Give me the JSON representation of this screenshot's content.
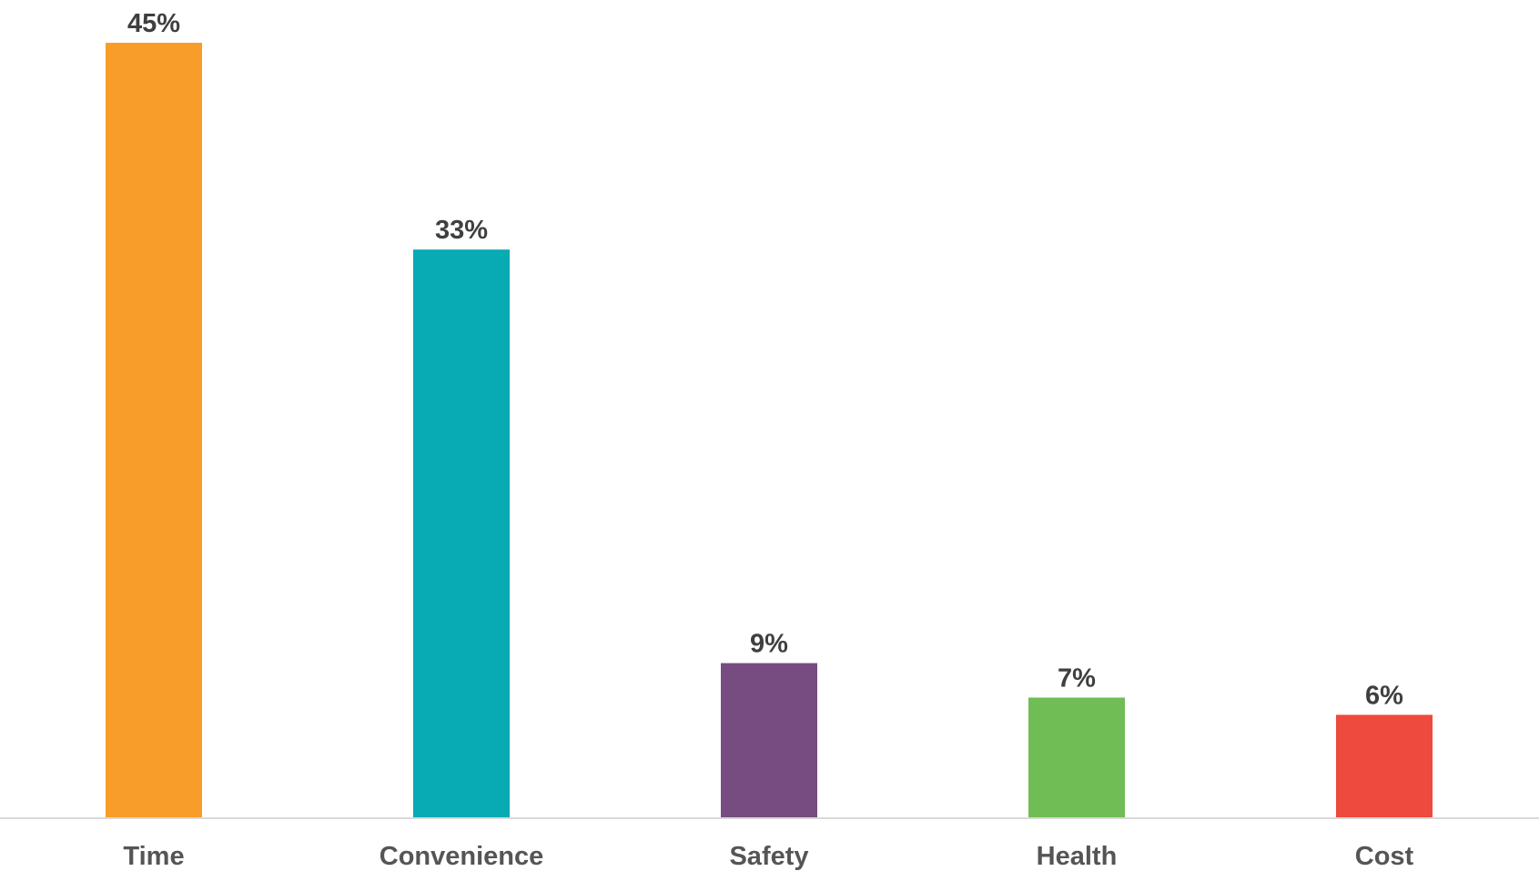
{
  "chart_data": {
    "type": "bar",
    "title": "",
    "xlabel": "",
    "ylabel": "",
    "categories": [
      "Time",
      "Convenience",
      "Safety",
      "Health",
      "Cost"
    ],
    "values": [
      45,
      33,
      9,
      7,
      6
    ],
    "value_labels": [
      "45%",
      "33%",
      "9%",
      "7%",
      "6%"
    ],
    "ylim": [
      0,
      45
    ],
    "grid": false,
    "legend": "none",
    "colors": [
      "#f99d2a",
      "#08aab3",
      "#774c81",
      "#70bd55",
      "#ee4a3d"
    ],
    "axis_color": "#d9d9d9"
  }
}
